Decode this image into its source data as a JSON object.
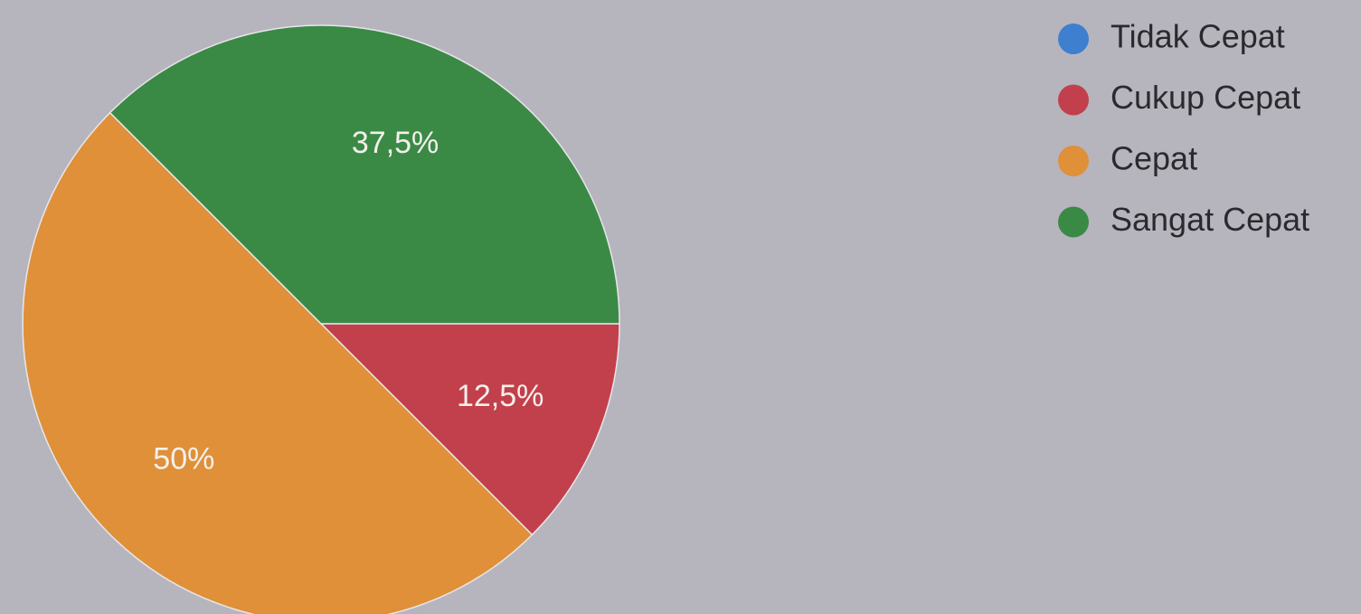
{
  "chart_data": {
    "type": "pie",
    "categories": [
      "Tidak Cepat",
      "Cukup Cepat",
      "Cepat",
      "Sangat Cepat"
    ],
    "values": [
      0,
      12.5,
      50,
      37.5
    ],
    "value_labels": [
      null,
      "12,5%",
      "50%",
      "37,5%"
    ],
    "colors": [
      "#3f7fcf",
      "#c2404b",
      "#df9038",
      "#3a8a46"
    ],
    "legend": "right"
  }
}
